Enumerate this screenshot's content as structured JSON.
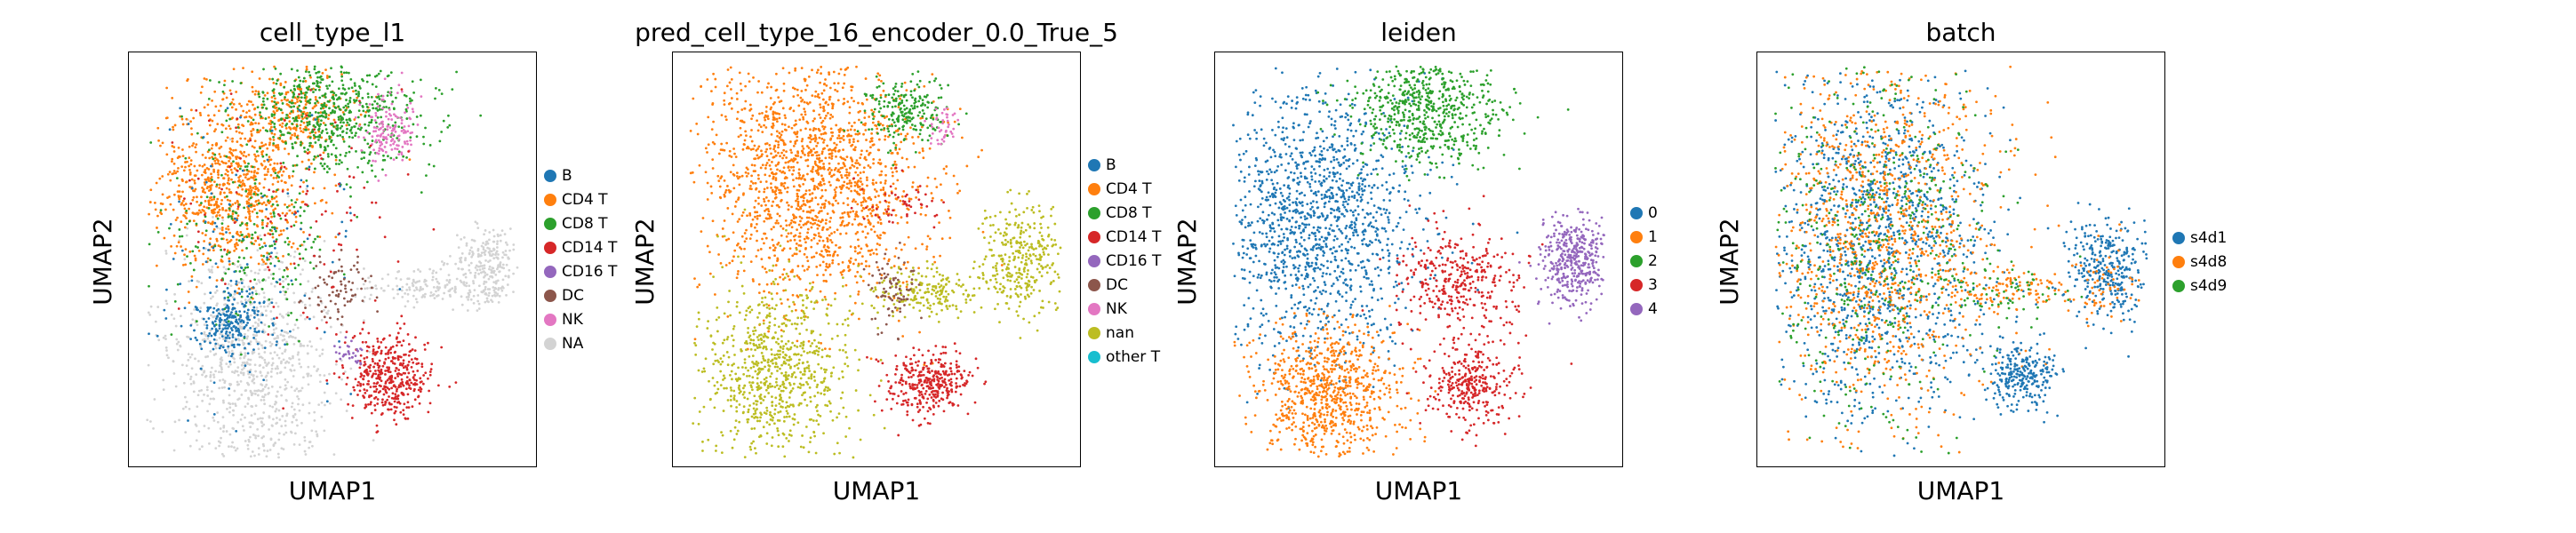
{
  "chart_data": [
    {
      "type": "scatter",
      "title": "cell_type_l1",
      "xlabel": "UMAP1",
      "ylabel": "UMAP2",
      "grid": false,
      "legend_position": "right",
      "legend": [
        {
          "label": "B",
          "color": "#1f77b4"
        },
        {
          "label": "CD4 T",
          "color": "#ff7f0e"
        },
        {
          "label": "CD8 T",
          "color": "#2ca02c"
        },
        {
          "label": "CD14 T",
          "color": "#d62728"
        },
        {
          "label": "CD16 T",
          "color": "#9467bd"
        },
        {
          "label": "DC",
          "color": "#8c564b"
        },
        {
          "label": "NK",
          "color": "#e377c2"
        },
        {
          "label": "NA",
          "color": "#d3d3d3"
        }
      ],
      "clusters": [
        {
          "cat": 7,
          "cx": 0.3,
          "cy": 0.75,
          "sx": 0.1,
          "sy": 0.14,
          "n": 900
        },
        {
          "cat": 7,
          "cx": 0.88,
          "cy": 0.52,
          "sx": 0.04,
          "sy": 0.05,
          "n": 260
        },
        {
          "cat": 7,
          "cx": 0.72,
          "cy": 0.57,
          "sx": 0.07,
          "sy": 0.02,
          "n": 130
        },
        {
          "cat": 1,
          "cx": 0.25,
          "cy": 0.33,
          "sx": 0.09,
          "sy": 0.1,
          "n": 800
        },
        {
          "cat": 1,
          "cx": 0.4,
          "cy": 0.15,
          "sx": 0.08,
          "sy": 0.05,
          "n": 280
        },
        {
          "cat": 2,
          "cx": 0.5,
          "cy": 0.14,
          "sx": 0.12,
          "sy": 0.07,
          "n": 650
        },
        {
          "cat": 2,
          "cx": 0.3,
          "cy": 0.45,
          "sx": 0.1,
          "sy": 0.1,
          "n": 220
        },
        {
          "cat": 6,
          "cx": 0.64,
          "cy": 0.19,
          "sx": 0.03,
          "sy": 0.04,
          "n": 150
        },
        {
          "cat": 0,
          "cx": 0.25,
          "cy": 0.65,
          "sx": 0.04,
          "sy": 0.04,
          "n": 220
        },
        {
          "cat": 0,
          "cx": 0.3,
          "cy": 0.5,
          "sx": 0.12,
          "sy": 0.2,
          "n": 130
        },
        {
          "cat": 5,
          "cx": 0.52,
          "cy": 0.57,
          "sx": 0.05,
          "sy": 0.04,
          "n": 80
        },
        {
          "cat": 3,
          "cx": 0.64,
          "cy": 0.78,
          "sx": 0.05,
          "sy": 0.05,
          "n": 400
        },
        {
          "cat": 3,
          "cx": 0.4,
          "cy": 0.4,
          "sx": 0.15,
          "sy": 0.15,
          "n": 120
        },
        {
          "cat": 4,
          "cx": 0.55,
          "cy": 0.73,
          "sx": 0.02,
          "sy": 0.015,
          "n": 30
        }
      ]
    },
    {
      "type": "scatter",
      "title": "pred_cell_type_16_encoder_0.0_True_5",
      "xlabel": "UMAP1",
      "ylabel": "UMAP2",
      "grid": false,
      "legend_position": "right",
      "legend": [
        {
          "label": "B",
          "color": "#1f77b4"
        },
        {
          "label": "CD4 T",
          "color": "#ff7f0e"
        },
        {
          "label": "CD8 T",
          "color": "#2ca02c"
        },
        {
          "label": "CD14 T",
          "color": "#d62728"
        },
        {
          "label": "CD16 T",
          "color": "#9467bd"
        },
        {
          "label": "DC",
          "color": "#8c564b"
        },
        {
          "label": "NK",
          "color": "#e377c2"
        },
        {
          "label": "nan",
          "color": "#bcbd22"
        },
        {
          "label": "other T",
          "color": "#17becf"
        }
      ],
      "clusters": [
        {
          "cat": 1,
          "cx": 0.35,
          "cy": 0.3,
          "sx": 0.14,
          "sy": 0.15,
          "n": 1700
        },
        {
          "cat": 7,
          "cx": 0.25,
          "cy": 0.77,
          "sx": 0.09,
          "sy": 0.11,
          "n": 800
        },
        {
          "cat": 7,
          "cx": 0.86,
          "cy": 0.5,
          "sx": 0.05,
          "sy": 0.06,
          "n": 330
        },
        {
          "cat": 7,
          "cx": 0.62,
          "cy": 0.58,
          "sx": 0.08,
          "sy": 0.03,
          "n": 200
        },
        {
          "cat": 2,
          "cx": 0.57,
          "cy": 0.14,
          "sx": 0.05,
          "sy": 0.04,
          "n": 220
        },
        {
          "cat": 6,
          "cx": 0.66,
          "cy": 0.18,
          "sx": 0.02,
          "sy": 0.025,
          "n": 40
        },
        {
          "cat": 5,
          "cx": 0.54,
          "cy": 0.57,
          "sx": 0.03,
          "sy": 0.04,
          "n": 80
        },
        {
          "cat": 3,
          "cx": 0.63,
          "cy": 0.8,
          "sx": 0.05,
          "sy": 0.04,
          "n": 340
        },
        {
          "cat": 3,
          "cx": 0.55,
          "cy": 0.36,
          "sx": 0.05,
          "sy": 0.04,
          "n": 50
        }
      ]
    },
    {
      "type": "scatter",
      "title": "leiden",
      "xlabel": "UMAP1",
      "ylabel": "UMAP2",
      "grid": false,
      "legend_position": "right",
      "legend": [
        {
          "label": "0",
          "color": "#1f77b4"
        },
        {
          "label": "1",
          "color": "#ff7f0e"
        },
        {
          "label": "2",
          "color": "#2ca02c"
        },
        {
          "label": "3",
          "color": "#d62728"
        },
        {
          "label": "4",
          "color": "#9467bd"
        }
      ],
      "clusters": [
        {
          "cat": 0,
          "cx": 0.25,
          "cy": 0.4,
          "sx": 0.12,
          "sy": 0.16,
          "n": 1400
        },
        {
          "cat": 1,
          "cx": 0.28,
          "cy": 0.82,
          "sx": 0.09,
          "sy": 0.08,
          "n": 800
        },
        {
          "cat": 2,
          "cx": 0.52,
          "cy": 0.14,
          "sx": 0.09,
          "sy": 0.07,
          "n": 650
        },
        {
          "cat": 3,
          "cx": 0.6,
          "cy": 0.55,
          "sx": 0.08,
          "sy": 0.06,
          "n": 350
        },
        {
          "cat": 3,
          "cx": 0.63,
          "cy": 0.8,
          "sx": 0.05,
          "sy": 0.05,
          "n": 330
        },
        {
          "cat": 4,
          "cx": 0.88,
          "cy": 0.5,
          "sx": 0.04,
          "sy": 0.055,
          "n": 400
        }
      ]
    },
    {
      "type": "scatter",
      "title": "batch",
      "xlabel": "UMAP1",
      "ylabel": "UMAP2",
      "grid": false,
      "legend_position": "right",
      "legend": [
        {
          "label": "s4d1",
          "color": "#1f77b4"
        },
        {
          "label": "s4d8",
          "color": "#ff7f0e"
        },
        {
          "label": "s4d9",
          "color": "#2ca02c"
        }
      ],
      "clusters": [
        {
          "cat": 0,
          "cx": 0.3,
          "cy": 0.45,
          "sx": 0.14,
          "sy": 0.22,
          "n": 1300
        },
        {
          "cat": 1,
          "cx": 0.3,
          "cy": 0.45,
          "sx": 0.14,
          "sy": 0.22,
          "n": 1100
        },
        {
          "cat": 2,
          "cx": 0.3,
          "cy": 0.45,
          "sx": 0.14,
          "sy": 0.22,
          "n": 500
        },
        {
          "cat": 0,
          "cx": 0.86,
          "cy": 0.52,
          "sx": 0.05,
          "sy": 0.06,
          "n": 330
        },
        {
          "cat": 0,
          "cx": 0.65,
          "cy": 0.78,
          "sx": 0.04,
          "sy": 0.04,
          "n": 250
        },
        {
          "cat": 1,
          "cx": 0.85,
          "cy": 0.55,
          "sx": 0.04,
          "sy": 0.05,
          "n": 60
        },
        {
          "cat": 1,
          "cx": 0.62,
          "cy": 0.57,
          "sx": 0.08,
          "sy": 0.03,
          "n": 120
        },
        {
          "cat": 2,
          "cx": 0.62,
          "cy": 0.58,
          "sx": 0.08,
          "sy": 0.03,
          "n": 60
        }
      ]
    }
  ]
}
